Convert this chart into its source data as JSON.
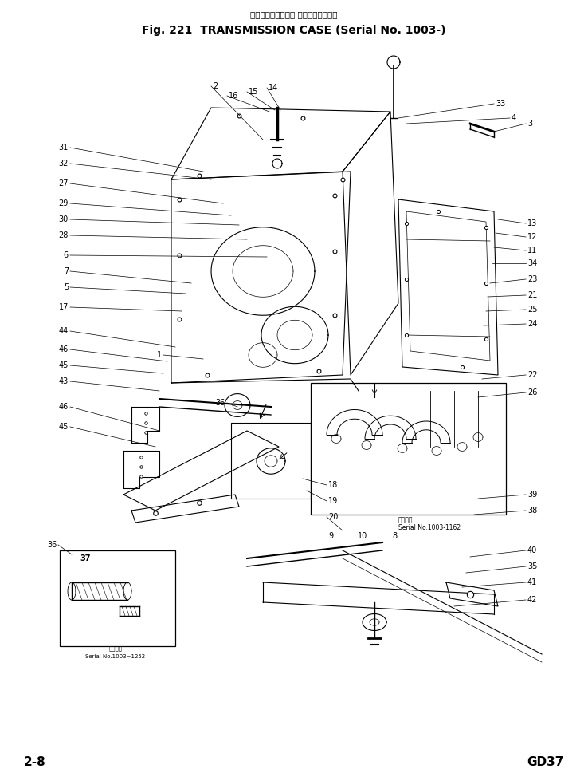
{
  "title_jp": "トランスミッション ケース（通用号機",
  "title_en": "Fig. 221  TRANSMISSION CASE (Serial No. 1003-)",
  "page_left": "2-8",
  "page_right": "GD37",
  "bg_color": "#ffffff",
  "lc": "#000000",
  "inset1_serial": "Serial No.1003-1162",
  "inset1_jp": "通用号機",
  "inset2_serial": "Serial No.1003~1252",
  "inset2_jp": "通用号機"
}
